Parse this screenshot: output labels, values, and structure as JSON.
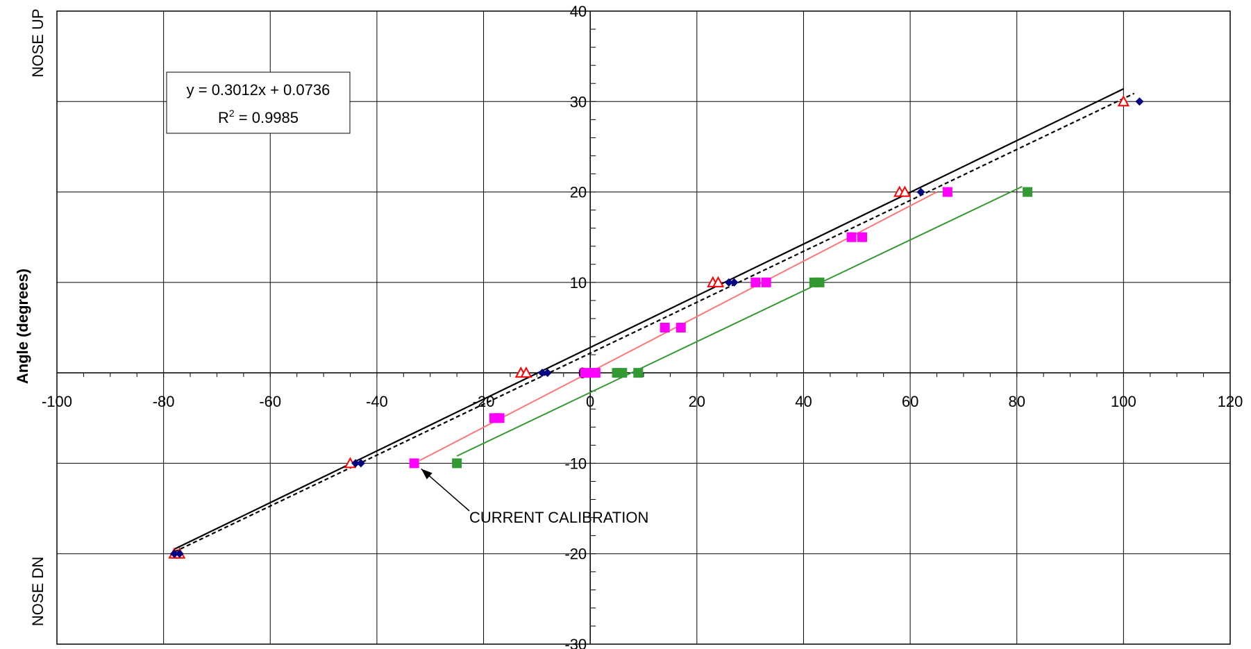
{
  "chart_data": {
    "type": "scatter",
    "ylabel": "Angle (degrees)",
    "side_labels": {
      "top": "NOSE  UP",
      "bottom": "NOSE  DN"
    },
    "xlim": [
      -100,
      120
    ],
    "ylim": [
      -30,
      40
    ],
    "xticks": [
      -100,
      -80,
      -60,
      -40,
      -20,
      0,
      20,
      40,
      60,
      80,
      100,
      120
    ],
    "yticks": [
      -30,
      -20,
      -10,
      0,
      10,
      20,
      30,
      40
    ],
    "grid": true,
    "equation": {
      "line1": "y = 0.3012x + 0.0736",
      "line2_prefix": "R",
      "line2_sup": "2",
      "line2_suffix": " = 0.9985"
    },
    "annotation": {
      "text": "CURRENT CALIBRATION",
      "target": [
        -33,
        -10
      ]
    },
    "colors": {
      "triangle": "#ff0000",
      "diamond": "#000080",
      "magenta": "#ff00ff",
      "green": "#339933",
      "salmon": "#ff7777",
      "black": "#000000"
    },
    "series": [
      {
        "marker": "triangle",
        "color": "#ff0000",
        "x": [
          -78,
          -77,
          -45,
          -13,
          -12,
          23,
          24,
          58,
          59,
          100
        ],
        "y": [
          -20,
          -20,
          -10,
          0,
          0,
          10,
          10,
          20,
          20,
          30
        ]
      },
      {
        "marker": "diamond",
        "color": "#000080",
        "x": [
          -78,
          -77,
          -44,
          -43,
          -9,
          -8,
          26,
          27,
          62,
          103
        ],
        "y": [
          -20,
          -20,
          -10,
          -10,
          0,
          0,
          10,
          10,
          20,
          30
        ]
      },
      {
        "marker": "square",
        "color": "#ff00ff",
        "x": [
          -33,
          -18,
          -17,
          -1,
          0,
          1,
          14,
          17,
          31,
          33,
          49,
          51,
          67
        ],
        "y": [
          -10,
          -5,
          -5,
          0,
          0,
          0,
          5,
          5,
          10,
          10,
          15,
          15,
          20
        ]
      },
      {
        "marker": "square",
        "color": "#339933",
        "x": [
          -25,
          5,
          6,
          9,
          42,
          43,
          82
        ],
        "y": [
          -10,
          0,
          0,
          0,
          10,
          10,
          20
        ]
      }
    ],
    "lines": [
      {
        "style": "solid",
        "color": "#000000",
        "x": [
          -78,
          100
        ],
        "y": [
          -19.5,
          31.4
        ]
      },
      {
        "style": "dotted",
        "color": "#000000",
        "x": [
          -78,
          102
        ],
        "y": [
          -19.8,
          30.9
        ]
      },
      {
        "style": "solid",
        "color": "#ff7777",
        "x": [
          -32,
          65
        ],
        "y": [
          -9.7,
          20.0
        ]
      },
      {
        "style": "solid",
        "color": "#339933",
        "x": [
          -25,
          81
        ],
        "y": [
          -9.2,
          20.6
        ]
      }
    ]
  }
}
